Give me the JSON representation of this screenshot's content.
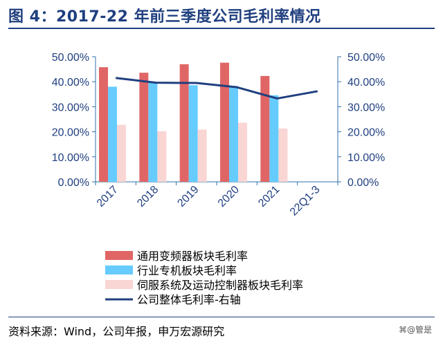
{
  "title": "图 4：2017-22 年前三季度公司毛利率情况",
  "source": "资料来源：Wind，公司年报，申万宏源研究",
  "watermark": "⌘@管是",
  "colors": {
    "title": "#1F3F7F",
    "axis_text": "#1F3F7F",
    "axis_line": "#2E6FA8",
    "bar_vfd": "#E06666",
    "bar_special": "#66CCFF",
    "bar_servo": "#F9D5D3",
    "line_total": "#1F3F7F"
  },
  "chart_data": {
    "type": "bar",
    "categories": [
      "2017",
      "2018",
      "2019",
      "2020",
      "2021",
      "22Q1-3"
    ],
    "series": [
      {
        "name": "通用变频器板块毛利率",
        "kind": "bar",
        "axis": "left",
        "color": "#E06666",
        "values": [
          45.8,
          43.6,
          47.0,
          47.6,
          42.3,
          null
        ]
      },
      {
        "name": "行业专机板块毛利率",
        "kind": "bar",
        "axis": "left",
        "color": "#66CCFF",
        "values": [
          38.0,
          39.6,
          38.6,
          38.3,
          34.6,
          null
        ]
      },
      {
        "name": "伺服系统及运动控制器板块毛利率",
        "kind": "bar",
        "axis": "left",
        "color": "#F9D5D3",
        "values": [
          22.8,
          20.2,
          20.9,
          23.6,
          21.3,
          null
        ]
      },
      {
        "name": "公司整体毛利率-右轴",
        "kind": "line",
        "axis": "right",
        "color": "#1F3F7F",
        "values": [
          41.5,
          39.6,
          39.5,
          37.8,
          33.3,
          36.2
        ]
      }
    ],
    "ylim": [
      0,
      50
    ],
    "y2lim": [
      0,
      50
    ],
    "yticks": [
      "0.00%",
      "10.00%",
      "20.00%",
      "30.00%",
      "40.00%",
      "50.00%"
    ],
    "y2ticks": [
      "0.00%",
      "10.00%",
      "20.00%",
      "30.00%",
      "40.00%",
      "50.00%"
    ],
    "legend_position": "bottom",
    "grid": false
  }
}
